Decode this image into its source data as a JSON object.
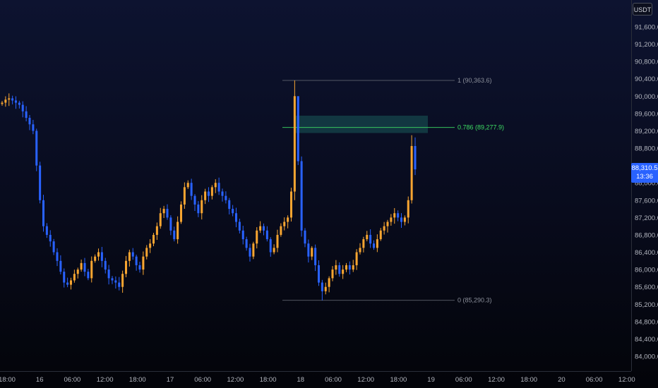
{
  "currency": "USDT",
  "current_price": "88,310.5",
  "countdown": "13:36",
  "colors": {
    "up": "#f7a531",
    "down": "#2962ff",
    "fib_line": "#6b6f7a",
    "fib_786": "#3ddc63",
    "zone_fill": "#1a5a5a"
  },
  "chart_data": {
    "type": "candlestick",
    "x_tick_labels": [
      "18:00",
      "16",
      "06:00",
      "12:00",
      "18:00",
      "17",
      "06:00",
      "12:00",
      "18:00",
      "18",
      "06:00",
      "12:00",
      "18:00",
      "19",
      "06:00",
      "12:00",
      "18:00",
      "20",
      "06:00",
      "12:00"
    ],
    "y_tick_labels": [
      "84,000.0",
      "84,400.0",
      "84,800.0",
      "85,200.0",
      "85,600.0",
      "86,000.0",
      "86,400.0",
      "86,800.0",
      "87,200.0",
      "87,600.0",
      "88,000.0",
      "88,400.0",
      "88,800.0",
      "89,200.0",
      "89,600.0",
      "90,000.0",
      "90,400.0",
      "90,800.0",
      "91,200.0",
      "91,600.0"
    ],
    "ylim": [
      83900,
      92100
    ],
    "fib_levels": [
      {
        "label": "1 (90,363.6)",
        "value": 90363.6
      },
      {
        "label": "0.786 (89,277.9)",
        "value": 89277.9
      },
      {
        "label": "0 (85,290.3)",
        "value": 85290.3
      }
    ],
    "zone": {
      "low": 89150,
      "high": 89550
    },
    "closes": [
      89850,
      89920,
      89950,
      89900,
      89850,
      89800,
      89650,
      89500,
      89350,
      89200,
      88400,
      87600,
      87000,
      86800,
      86650,
      86400,
      86200,
      85950,
      85700,
      85650,
      85750,
      85900,
      86000,
      86150,
      85950,
      85800,
      86200,
      86300,
      86400,
      86200,
      86000,
      85800,
      85750,
      85700,
      85600,
      85900,
      86200,
      86400,
      86300,
      86100,
      86000,
      86300,
      86500,
      86600,
      86800,
      87000,
      87300,
      87400,
      87200,
      86900,
      86700,
      87100,
      87500,
      87900,
      88000,
      87700,
      87500,
      87300,
      87600,
      87800,
      87700,
      87900,
      88000,
      87800,
      87700,
      87600,
      87400,
      87300,
      87100,
      86900,
      86700,
      86500,
      86300,
      86600,
      86900,
      87000,
      86900,
      86700,
      86400,
      86500,
      86800,
      87000,
      87100,
      87200,
      87800,
      90000,
      88500,
      86900,
      86600,
      86300,
      86500,
      86100,
      85700,
      85500,
      85600,
      85800,
      86000,
      86100,
      85900,
      86000,
      86100,
      86000,
      86100,
      86400,
      86500,
      86700,
      86800,
      86600,
      86500,
      86700,
      86900,
      87000,
      87100,
      87200,
      87300,
      87200,
      87100,
      87200,
      87600,
      88850,
      88310.5
    ],
    "current_price": 88310.5
  }
}
